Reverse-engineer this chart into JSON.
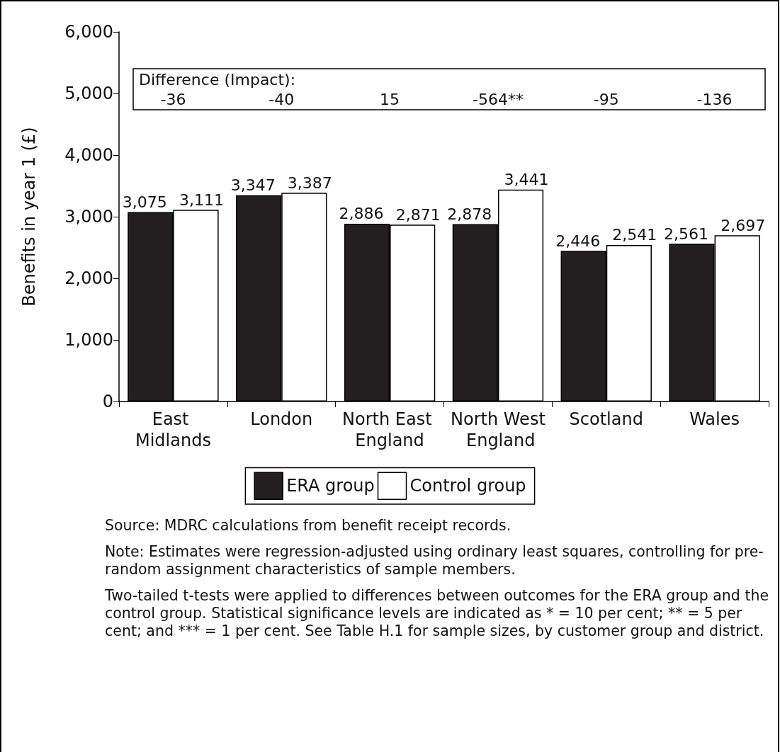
{
  "chart_data": {
    "type": "bar",
    "ylabel": "Benefits in year 1 (£)",
    "categories": [
      "East Midlands",
      "London",
      "North East England",
      "North West England",
      "Scotland",
      "Wales"
    ],
    "series": [
      {
        "name": "ERA group",
        "color": "#231f20",
        "values": [
          3075,
          3347,
          2886,
          2878,
          2446,
          2561
        ],
        "value_labels": [
          "3,075",
          "3,347",
          "2,886",
          "2,878",
          "2,446",
          "2,561"
        ]
      },
      {
        "name": "Control group",
        "color": "#ffffff",
        "values": [
          3111,
          3387,
          2871,
          3441,
          2541,
          2697
        ],
        "value_labels": [
          "3,111",
          "3,387",
          "2,871",
          "3,441",
          "2,541",
          "2,697"
        ]
      }
    ],
    "ylim": [
      0,
      6000
    ],
    "yticks": [
      {
        "value": 0,
        "label": "0"
      },
      {
        "value": 1000,
        "label": "1,000"
      },
      {
        "value": 2000,
        "label": "2,000"
      },
      {
        "value": 3000,
        "label": "3,000"
      },
      {
        "value": 4000,
        "label": "4,000"
      },
      {
        "value": 5000,
        "label": "5,000"
      },
      {
        "value": 6000,
        "label": "6,000"
      }
    ],
    "grid": false,
    "legend": "bottom",
    "annotations": [
      "Difference (Impact):",
      "-36",
      "-40",
      "15",
      "-564**",
      "-95",
      "-136",
      "Source: MDRC calculations from benefit receipt records.",
      "Note: Estimates were regression-adjusted using ordinary least squares, controlling for pre-random assignment characteristics of sample members.",
      "Two-tailed t-tests were applied to differences between outcomes for the ERA group and the control group. Statistical significance levels are indicated as * = 10 per cent; ** = 5 per cent; and *** = 1 per cent. See Table H.1 for sample sizes, by customer group and district."
    ]
  }
}
